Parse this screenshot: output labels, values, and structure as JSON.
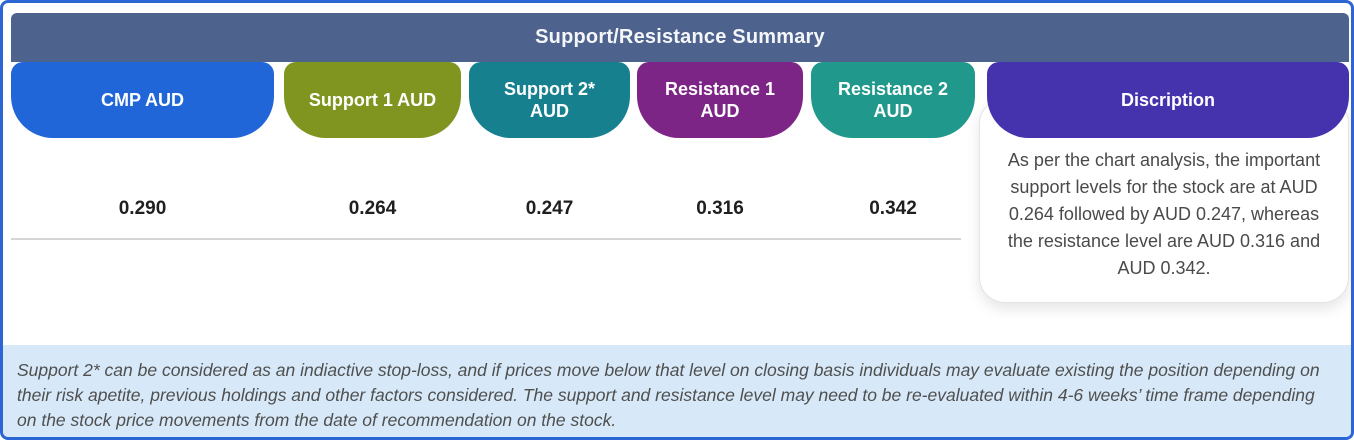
{
  "title": "Support/Resistance Summary",
  "table": {
    "columns": [
      {
        "label": "CMP AUD",
        "value": "0.290",
        "color": "#2066d8"
      },
      {
        "label": "Support 1 AUD",
        "value": "0.264",
        "color": "#80951f"
      },
      {
        "label": "Support 2* AUD",
        "value": "0.247",
        "color": "#17808e"
      },
      {
        "label": "Resistance 1 AUD",
        "value": "0.316",
        "color": "#7d2586"
      },
      {
        "label": "Resistance 2 AUD",
        "value": "0.342",
        "color": "#21988c"
      }
    ],
    "description": {
      "label": "Discription",
      "color": "#4533ae",
      "text": "As per the chart analysis, the important support levels for the stock are at AUD 0.264 followed by AUD 0.247, whereas the resistance level are AUD 0.316 and AUD 0.342."
    }
  },
  "footnote": "Support 2* can be considered as an indiactive stop-loss, and if prices move below that level on closing basis individuals may evaluate existing the position depending on their risk apetite, previous holdings and other factors considered. The support and resistance level may need to be re-evaluated within 4-6 weeks’ time frame depending on the stock price movements from  the date of recommendation on the stock.",
  "colors": {
    "frame_border": "#2b66d4",
    "title_bar": "#4d628c",
    "divider": "#d6d6d6",
    "footnote_bg": "#d7e9f8",
    "value_text": "#1f1f1f"
  }
}
